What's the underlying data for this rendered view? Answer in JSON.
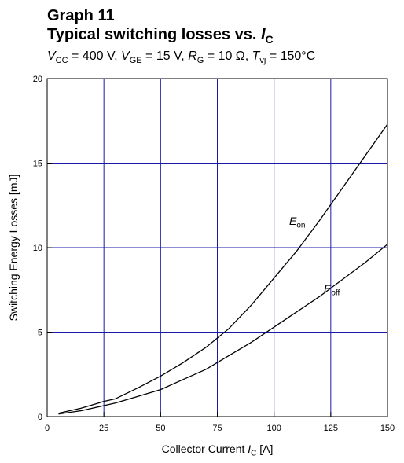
{
  "chart_data": {
    "type": "line",
    "title": "Graph 11",
    "title2": [
      "Typical switching losses vs. ",
      {
        "i": "I"
      },
      {
        "sub": "C"
      }
    ],
    "subtitle": [
      {
        "i": "V"
      },
      {
        "sub": "CC"
      },
      " = 400 V, ",
      {
        "i": "V"
      },
      {
        "sub": "GE"
      },
      " = 15 V, ",
      {
        "i": "R"
      },
      {
        "sub": "G"
      },
      " = 10 Ω, ",
      {
        "i": "T"
      },
      {
        "sub": "vj"
      },
      " = 150°C"
    ],
    "xlabel": [
      "Collector Current ",
      {
        "i": "I"
      },
      {
        "sub": "C"
      },
      " [A]"
    ],
    "ylabel": "Switching Energy Losses [mJ]",
    "x": [
      5,
      10,
      15,
      20,
      25,
      30,
      40,
      50,
      60,
      70,
      80,
      90,
      100,
      110,
      120,
      130,
      140,
      150
    ],
    "series": [
      {
        "name": [
          {
            "i": "E"
          },
          {
            "sub": "on"
          }
        ],
        "color": "#000000",
        "values": [
          0.2,
          0.35,
          0.5,
          0.7,
          0.9,
          1.05,
          1.7,
          2.4,
          3.2,
          4.1,
          5.2,
          6.6,
          8.2,
          9.8,
          11.6,
          13.5,
          15.4,
          17.3
        ]
      },
      {
        "name": [
          {
            "i": "E"
          },
          {
            "sub": "off"
          }
        ],
        "color": "#000000",
        "values": [
          0.15,
          0.25,
          0.35,
          0.5,
          0.65,
          0.8,
          1.2,
          1.6,
          2.2,
          2.8,
          3.6,
          4.4,
          5.3,
          6.2,
          7.1,
          8.1,
          9.1,
          10.2
        ]
      }
    ],
    "xlim": [
      0,
      150
    ],
    "xticks": [
      0,
      25,
      50,
      75,
      100,
      125,
      150
    ],
    "ylim": [
      0,
      20
    ],
    "yticks": [
      0,
      5,
      10,
      15,
      20
    ],
    "grid": true,
    "grid_color": "#1a1aa8"
  }
}
